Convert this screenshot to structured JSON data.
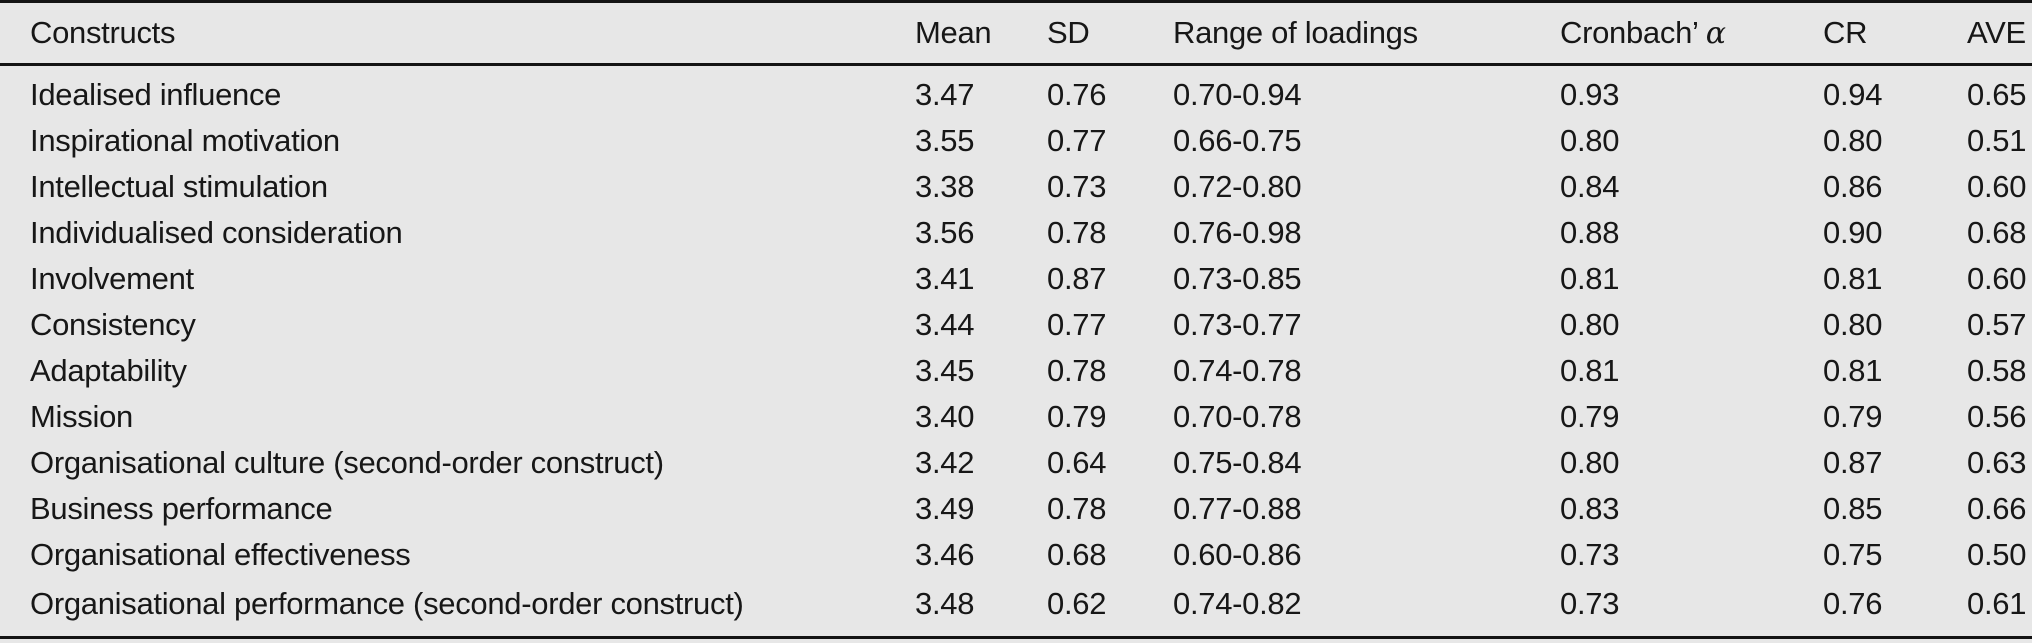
{
  "colors": {
    "background": "#e7e7e7",
    "text": "#171717",
    "rule": "#141414"
  },
  "table": {
    "header": {
      "constructs": "Constructs",
      "mean": "Mean",
      "sd": "SD",
      "range": "Range of loadings",
      "cronbach_prefix": "Cronbach’",
      "cronbach_symbol": "α",
      "cr": "CR",
      "ave": "AVE"
    },
    "rows": [
      {
        "construct": "Idealised influence",
        "mean": "3.47",
        "sd": "0.76",
        "range": "0.70-0.94",
        "alpha": "0.93",
        "cr": "0.94",
        "ave": "0.65"
      },
      {
        "construct": "Inspirational motivation",
        "mean": "3.55",
        "sd": "0.77",
        "range": "0.66-0.75",
        "alpha": "0.80",
        "cr": "0.80",
        "ave": "0.51"
      },
      {
        "construct": "Intellectual stimulation",
        "mean": "3.38",
        "sd": "0.73",
        "range": "0.72-0.80",
        "alpha": "0.84",
        "cr": "0.86",
        "ave": "0.60"
      },
      {
        "construct": "Individualised consideration",
        "mean": "3.56",
        "sd": "0.78",
        "range": "0.76-0.98",
        "alpha": "0.88",
        "cr": "0.90",
        "ave": "0.68"
      },
      {
        "construct": "Involvement",
        "mean": "3.41",
        "sd": "0.87",
        "range": "0.73-0.85",
        "alpha": "0.81",
        "cr": "0.81",
        "ave": "0.60"
      },
      {
        "construct": "Consistency",
        "mean": "3.44",
        "sd": "0.77",
        "range": "0.73-0.77",
        "alpha": "0.80",
        "cr": "0.80",
        "ave": "0.57"
      },
      {
        "construct": "Adaptability",
        "mean": "3.45",
        "sd": "0.78",
        "range": "0.74-0.78",
        "alpha": "0.81",
        "cr": "0.81",
        "ave": "0.58"
      },
      {
        "construct": "Mission",
        "mean": "3.40",
        "sd": "0.79",
        "range": "0.70-0.78",
        "alpha": "0.79",
        "cr": "0.79",
        "ave": "0.56"
      },
      {
        "construct": "Organisational culture (second-order construct)",
        "mean": "3.42",
        "sd": "0.64",
        "range": "0.75-0.84",
        "alpha": "0.80",
        "cr": "0.87",
        "ave": "0.63"
      },
      {
        "construct": "Business performance",
        "mean": "3.49",
        "sd": "0.78",
        "range": "0.77-0.88",
        "alpha": "0.83",
        "cr": "0.85",
        "ave": "0.66"
      },
      {
        "construct": "Organisational effectiveness",
        "mean": "3.46",
        "sd": "0.68",
        "range": "0.60-0.86",
        "alpha": "0.73",
        "cr": "0.75",
        "ave": "0.50"
      },
      {
        "construct": "Organisational performance (second-order construct)",
        "mean": "3.48",
        "sd": "0.62",
        "range": "0.74-0.82",
        "alpha": "0.73",
        "cr": "0.76",
        "ave": "0.61"
      }
    ]
  }
}
